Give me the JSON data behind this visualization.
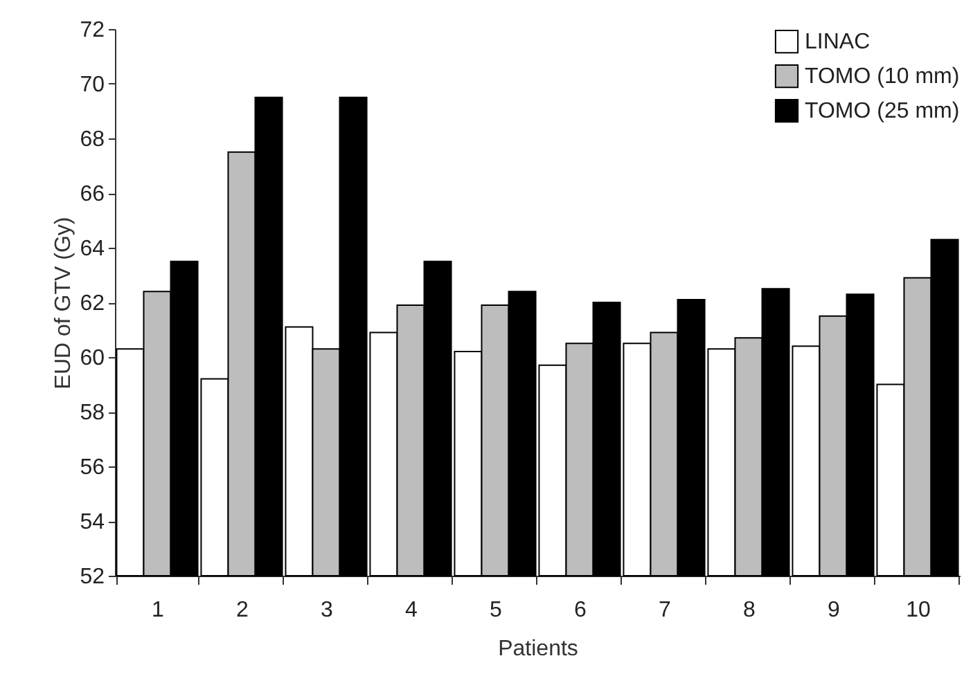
{
  "chart_data": {
    "type": "bar",
    "xlabel": "Patients",
    "ylabel": "EUD of GTV (Gy)",
    "categories": [
      "1",
      "2",
      "3",
      "4",
      "5",
      "6",
      "7",
      "8",
      "9",
      "10"
    ],
    "series": [
      {
        "name": "LINAC",
        "color": "#ffffff",
        "values": [
          60.3,
          59.2,
          61.1,
          60.9,
          60.2,
          59.7,
          60.5,
          60.3,
          60.4,
          59.0
        ]
      },
      {
        "name": "TOMO (10 mm)",
        "color": "#bdbdbd",
        "values": [
          62.4,
          67.5,
          60.3,
          61.9,
          61.9,
          60.5,
          60.9,
          60.7,
          61.5,
          62.9
        ]
      },
      {
        "name": "TOMO (25 mm)",
        "color": "#000000",
        "values": [
          63.5,
          69.5,
          69.5,
          63.5,
          62.4,
          62.0,
          62.1,
          62.5,
          62.3,
          64.3
        ]
      }
    ],
    "ylim": [
      52,
      72
    ],
    "yticks": [
      52,
      54,
      56,
      58,
      60,
      62,
      64,
      66,
      68,
      70,
      72
    ],
    "grid": false,
    "legend": "top right"
  }
}
